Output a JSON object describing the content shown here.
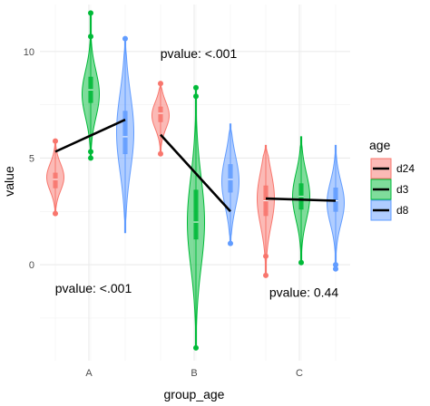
{
  "chart_data": {
    "type": "violin",
    "xlabel": "group_age",
    "ylabel": "value",
    "categories": [
      "A",
      "B",
      "C"
    ],
    "ylim": [
      -4.5,
      12.2
    ],
    "yticks": [
      0,
      5,
      10
    ],
    "grid": true,
    "legend": {
      "title": "age",
      "placement": "right",
      "entries": [
        "d24",
        "d3",
        "d8"
      ]
    },
    "colors": {
      "d24": "#F8766D",
      "d3": "#00BA38",
      "d8": "#619CFF"
    },
    "series": [
      {
        "name": "d24",
        "groups": [
          {
            "group": "A",
            "min": 2.4,
            "q1": 3.6,
            "median": 4.0,
            "q3": 4.3,
            "max": 5.8,
            "peak": 4.1,
            "outliers": [
              2.4,
              5.8
            ]
          },
          {
            "group": "B",
            "min": 5.2,
            "q1": 6.7,
            "median": 7.1,
            "q3": 7.4,
            "max": 8.5,
            "peak": 7.0,
            "outliers": [
              5.2,
              8.5
            ]
          },
          {
            "group": "C",
            "min": -0.5,
            "q1": 2.3,
            "median": 3.0,
            "q3": 3.7,
            "max": 5.6,
            "peak": 3.1,
            "outliers": [
              0.4,
              -0.5
            ]
          }
        ]
      },
      {
        "name": "d3",
        "groups": [
          {
            "group": "A",
            "min": 5.0,
            "q1": 7.6,
            "median": 8.2,
            "q3": 8.8,
            "max": 11.8,
            "peak": 8.0,
            "outliers": [
              11.8,
              10.7,
              5.0,
              5.3
            ]
          },
          {
            "group": "B",
            "min": -3.9,
            "q1": 1.2,
            "median": 2.0,
            "q3": 3.5,
            "max": 8.3,
            "peak": 2.0,
            "outliers": [
              8.3,
              7.9,
              -3.9
            ]
          },
          {
            "group": "C",
            "min": 0.1,
            "q1": 2.6,
            "median": 3.2,
            "q3": 3.8,
            "max": 6.0,
            "peak": 3.2,
            "outliers": [
              0.1
            ]
          }
        ]
      },
      {
        "name": "d8",
        "groups": [
          {
            "group": "A",
            "min": 1.5,
            "q1": 5.2,
            "median": 6.0,
            "q3": 7.2,
            "max": 10.6,
            "peak": 6.2,
            "outliers": [
              10.6
            ]
          },
          {
            "group": "B",
            "min": 1.0,
            "q1": 3.4,
            "median": 4.0,
            "q3": 4.7,
            "max": 6.6,
            "peak": 3.9,
            "outliers": [
              1.0
            ]
          },
          {
            "group": "C",
            "min": -0.2,
            "q1": 2.5,
            "median": 3.0,
            "q3": 3.6,
            "max": 5.6,
            "peak": 2.9,
            "outliers": [
              0.0,
              -0.2
            ]
          }
        ]
      }
    ],
    "trend_lines": [
      {
        "group": "A",
        "from": {
          "series": "d24",
          "y": 5.3
        },
        "to": {
          "series": "d8",
          "y": 6.8
        },
        "via": {
          "series": "d3",
          "y": 6.0
        }
      },
      {
        "group": "B",
        "from": {
          "series": "d24",
          "y": 6.1
        },
        "to": {
          "series": "d8",
          "y": 2.5
        }
      },
      {
        "group": "C",
        "from": {
          "series": "d24",
          "y": 3.1
        },
        "to": {
          "series": "d8",
          "y": 3.0
        }
      }
    ],
    "annotations": [
      {
        "group": "A",
        "text": "pvalue: <.001",
        "y": -1.1
      },
      {
        "group": "B",
        "text": "pvalue: <.001",
        "y": 9.9
      },
      {
        "group": "C",
        "text": "pvalue: 0.44",
        "y": -1.3
      }
    ]
  }
}
